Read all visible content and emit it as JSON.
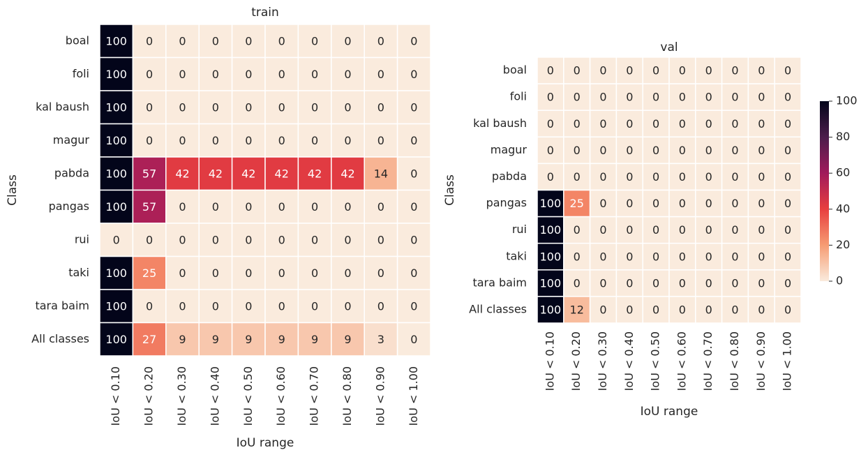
{
  "chart_data": [
    {
      "type": "heatmap",
      "title": "train",
      "xlabel": "IoU range",
      "ylabel": "Class",
      "categories": [
        "IoU < 0.10",
        "IoU < 0.20",
        "IoU < 0.30",
        "IoU < 0.40",
        "IoU < 0.50",
        "IoU < 0.60",
        "IoU < 0.70",
        "IoU < 0.80",
        "IoU < 0.90",
        "IoU < 1.00"
      ],
      "rows": [
        "boal",
        "foli",
        "kal baush",
        "magur",
        "pabda",
        "pangas",
        "rui",
        "taki",
        "tara baim",
        "All classes"
      ],
      "values": [
        [
          100,
          0,
          0,
          0,
          0,
          0,
          0,
          0,
          0,
          0
        ],
        [
          100,
          0,
          0,
          0,
          0,
          0,
          0,
          0,
          0,
          0
        ],
        [
          100,
          0,
          0,
          0,
          0,
          0,
          0,
          0,
          0,
          0
        ],
        [
          100,
          0,
          0,
          0,
          0,
          0,
          0,
          0,
          0,
          0
        ],
        [
          100,
          57,
          42,
          42,
          42,
          42,
          42,
          42,
          14,
          0
        ],
        [
          100,
          57,
          0,
          0,
          0,
          0,
          0,
          0,
          0,
          0
        ],
        [
          0,
          0,
          0,
          0,
          0,
          0,
          0,
          0,
          0,
          0
        ],
        [
          100,
          25,
          0,
          0,
          0,
          0,
          0,
          0,
          0,
          0
        ],
        [
          100,
          0,
          0,
          0,
          0,
          0,
          0,
          0,
          0,
          0
        ],
        [
          100,
          27,
          9,
          9,
          9,
          9,
          9,
          9,
          3,
          0
        ]
      ],
      "clim": [
        0,
        100
      ],
      "cmap": [
        "#faebdd",
        "#f69c73",
        "#e83f3f",
        "#a11a5b",
        "#4c1d4b",
        "#03051a"
      ]
    },
    {
      "type": "heatmap",
      "title": "val",
      "xlabel": "IoU range",
      "ylabel": "Class",
      "categories": [
        "IoU < 0.10",
        "IoU < 0.20",
        "IoU < 0.30",
        "IoU < 0.40",
        "IoU < 0.50",
        "IoU < 0.60",
        "IoU < 0.70",
        "IoU < 0.80",
        "IoU < 0.90",
        "IoU < 1.00"
      ],
      "rows": [
        "boal",
        "foli",
        "kal baush",
        "magur",
        "pabda",
        "pangas",
        "rui",
        "taki",
        "tara baim",
        "All classes"
      ],
      "values": [
        [
          0,
          0,
          0,
          0,
          0,
          0,
          0,
          0,
          0,
          0
        ],
        [
          0,
          0,
          0,
          0,
          0,
          0,
          0,
          0,
          0,
          0
        ],
        [
          0,
          0,
          0,
          0,
          0,
          0,
          0,
          0,
          0,
          0
        ],
        [
          0,
          0,
          0,
          0,
          0,
          0,
          0,
          0,
          0,
          0
        ],
        [
          0,
          0,
          0,
          0,
          0,
          0,
          0,
          0,
          0,
          0
        ],
        [
          100,
          25,
          0,
          0,
          0,
          0,
          0,
          0,
          0,
          0
        ],
        [
          100,
          0,
          0,
          0,
          0,
          0,
          0,
          0,
          0,
          0
        ],
        [
          100,
          0,
          0,
          0,
          0,
          0,
          0,
          0,
          0,
          0
        ],
        [
          100,
          0,
          0,
          0,
          0,
          0,
          0,
          0,
          0,
          0
        ],
        [
          100,
          12,
          0,
          0,
          0,
          0,
          0,
          0,
          0,
          0
        ]
      ],
      "clim": [
        0,
        100
      ],
      "cmap": [
        "#faebdd",
        "#f69c73",
        "#e83f3f",
        "#a11a5b",
        "#4c1d4b",
        "#03051a"
      ],
      "colorbar_ticks": [
        0,
        20,
        40,
        60,
        80,
        100
      ]
    }
  ]
}
